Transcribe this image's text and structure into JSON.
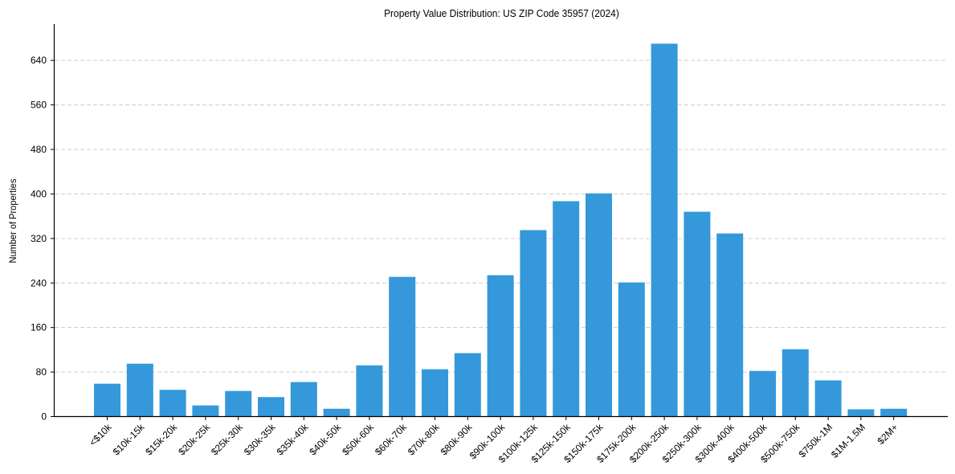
{
  "chart_data": {
    "type": "bar",
    "title": "Property Value Distribution: US ZIP Code 35957 (2024)",
    "xlabel": "",
    "ylabel": "Number of Properties",
    "categories": [
      "<$10k",
      "$10k-15k",
      "$15k-20k",
      "$20k-25k",
      "$25k-30k",
      "$30k-35k",
      "$35k-40k",
      "$40k-50k",
      "$50k-60k",
      "$60k-70k",
      "$70k-80k",
      "$80k-90k",
      "$90k-100k",
      "$100k-125k",
      "$125k-150k",
      "$150k-175k",
      "$175k-200k",
      "$200k-250k",
      "$250k-300k",
      "$300k-400k",
      "$400k-500k",
      "$500k-750k",
      "$750k-1M",
      "$1M-1.5M",
      "$2M+"
    ],
    "values": [
      59,
      95,
      48,
      20,
      46,
      35,
      62,
      14,
      92,
      251,
      85,
      114,
      254,
      335,
      387,
      401,
      241,
      670,
      368,
      329,
      82,
      121,
      65,
      13,
      14
    ],
    "ylim": [
      0,
      704
    ],
    "yticks": [
      0,
      80,
      160,
      240,
      320,
      400,
      480,
      560,
      640
    ],
    "grid": {
      "axis": "y",
      "style": "dashed",
      "color": "#cccccc"
    },
    "bar_color": "#3498db",
    "legend": null
  }
}
